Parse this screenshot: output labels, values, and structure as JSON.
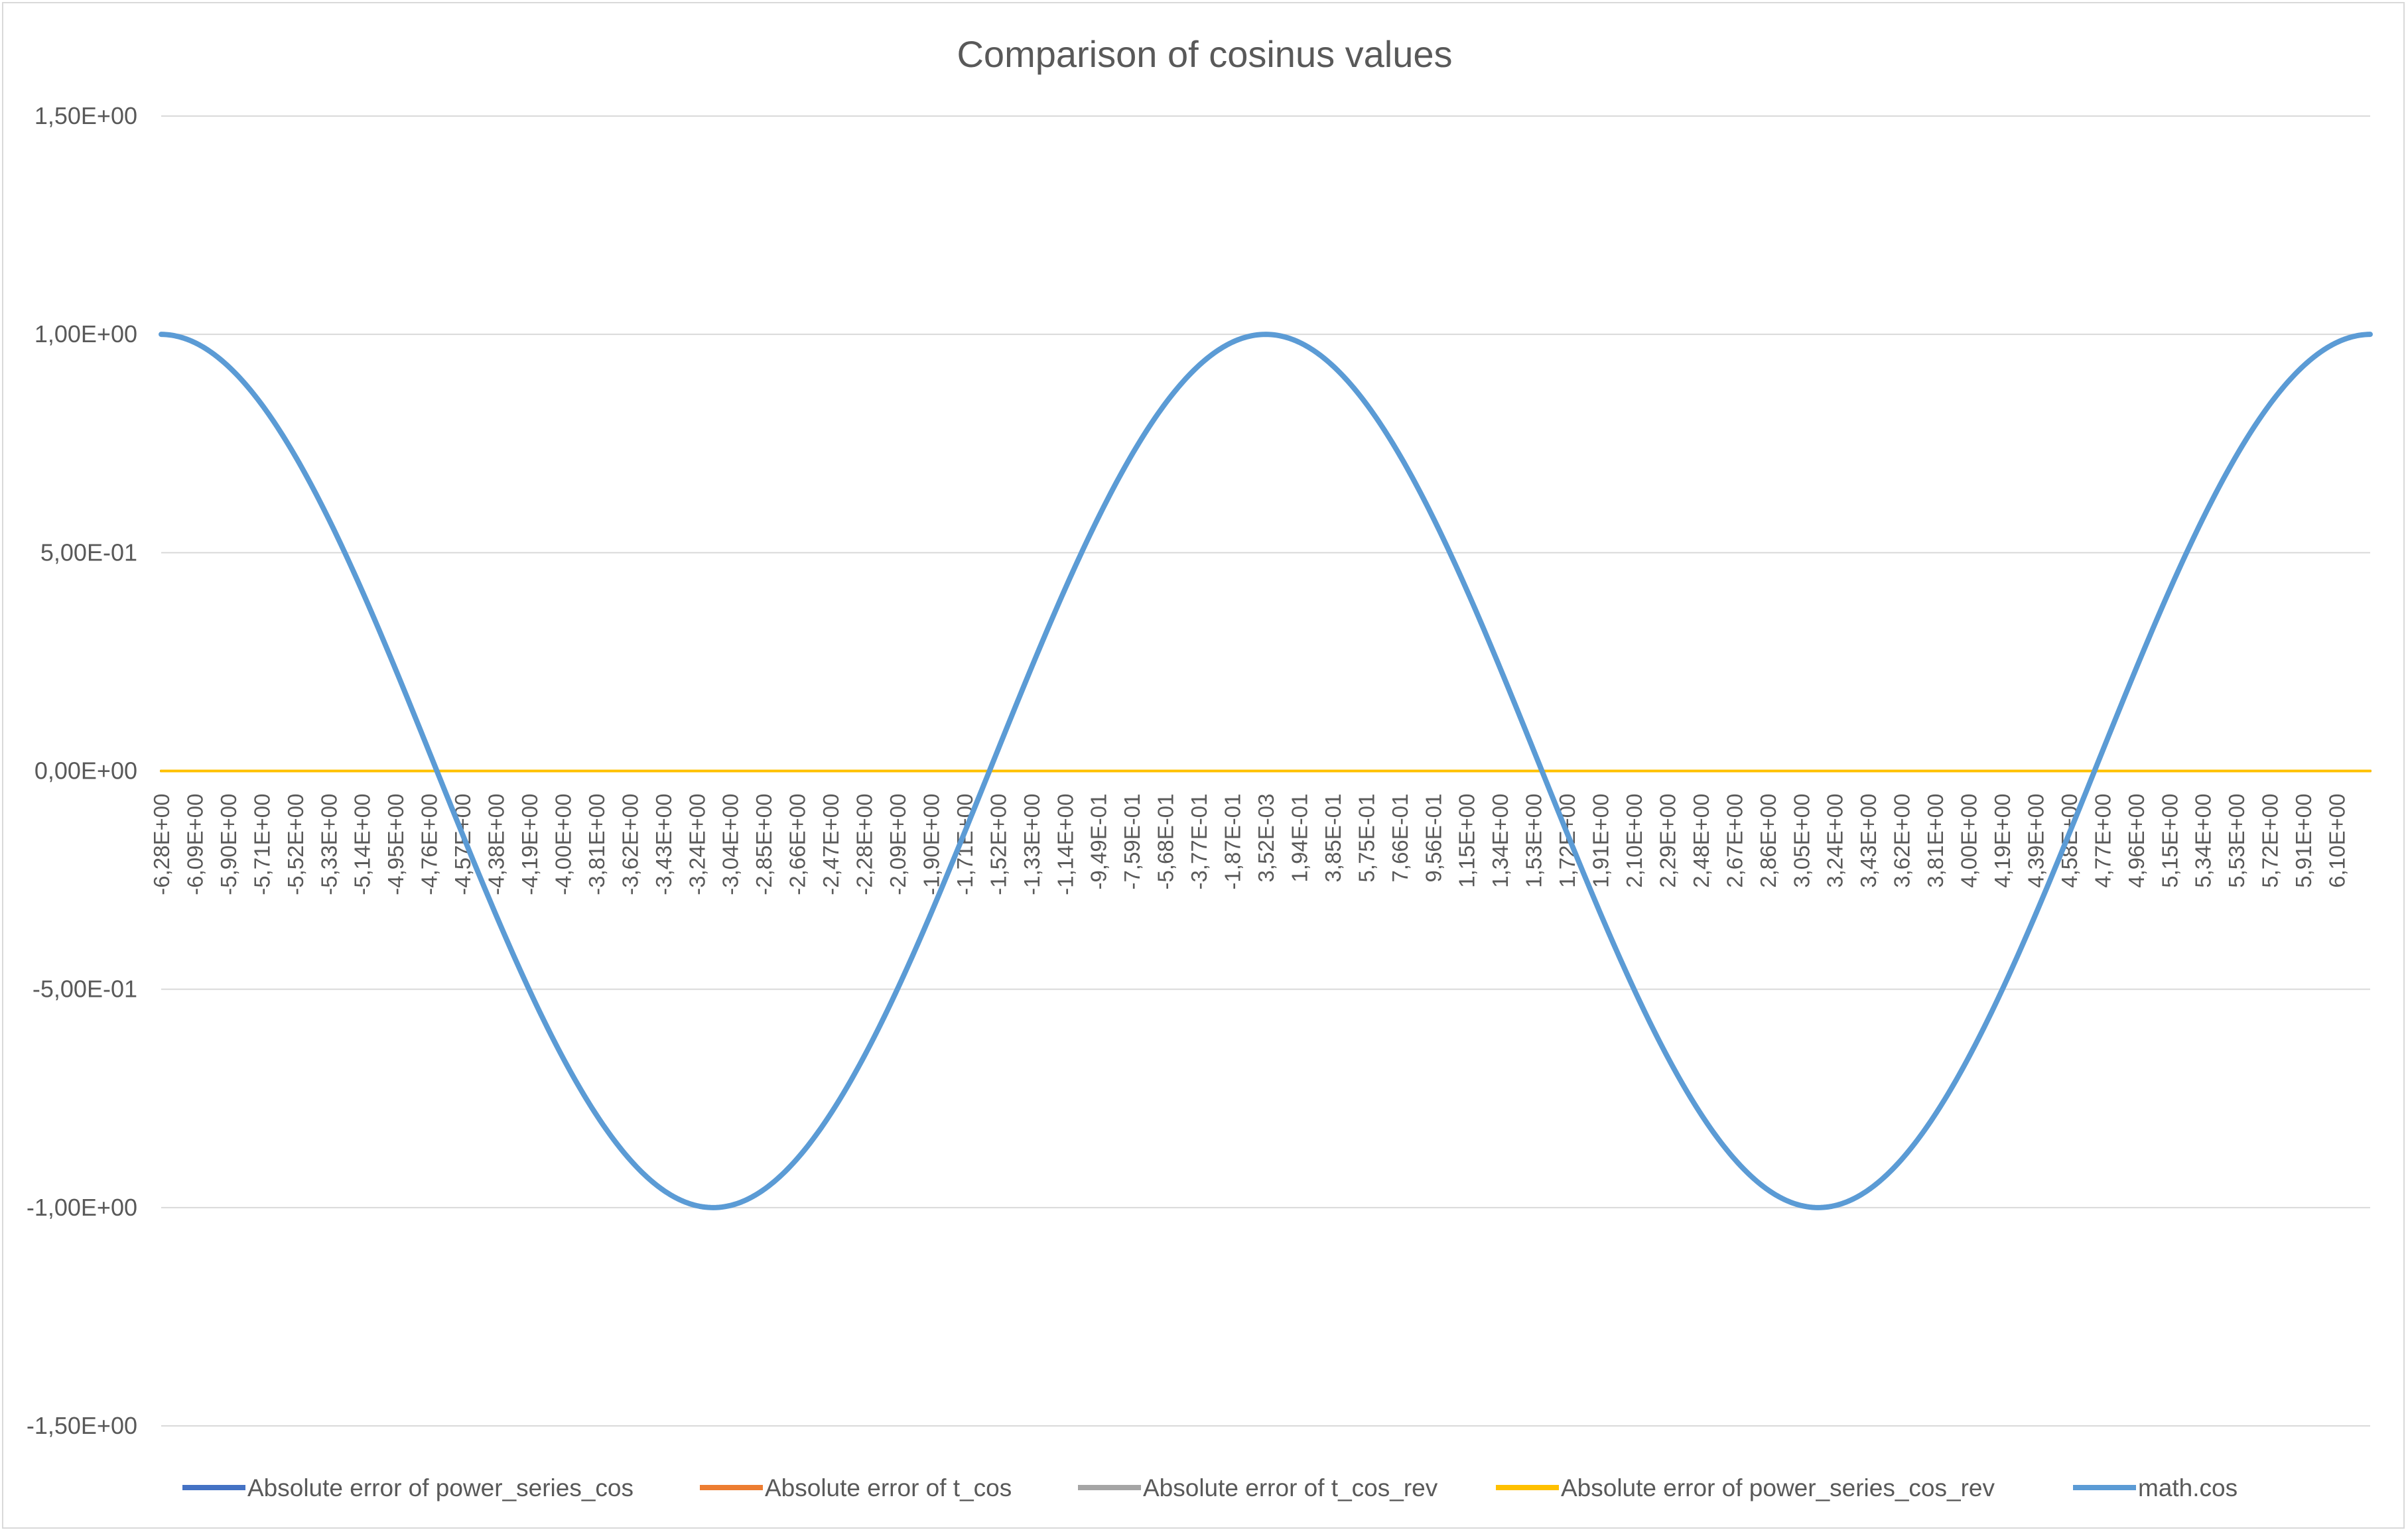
{
  "chart_data": {
    "type": "line",
    "title": "Comparison of cosinus values",
    "xlabel": "",
    "ylabel": "",
    "ylim": [
      -1.5,
      1.5
    ],
    "y_ticks": [
      "-1,50E+00",
      "-1,00E+00",
      "-5,00E-01",
      "0,00E+00",
      "5,00E-01",
      "1,00E+00",
      "1,50E+00"
    ],
    "y_tick_values": [
      -1.5,
      -1.0,
      -0.5,
      0.0,
      0.5,
      1.0,
      1.5
    ],
    "x_range": [
      -6.28,
      6.28
    ],
    "x_tick_labels": [
      "-6,28E+00",
      "-6,09E+00",
      "-5,90E+00",
      "-5,71E+00",
      "-5,52E+00",
      "-5,33E+00",
      "-5,14E+00",
      "-4,95E+00",
      "-4,76E+00",
      "-4,57E+00",
      "-4,38E+00",
      "-4,19E+00",
      "-4,00E+00",
      "-3,81E+00",
      "-3,62E+00",
      "-3,43E+00",
      "-3,24E+00",
      "-3,04E+00",
      "-2,85E+00",
      "-2,66E+00",
      "-2,47E+00",
      "-2,28E+00",
      "-2,09E+00",
      "-1,90E+00",
      "-1,71E+00",
      "-1,52E+00",
      "-1,33E+00",
      "-1,14E+00",
      "-9,49E-01",
      "-7,59E-01",
      "-5,68E-01",
      "-3,77E-01",
      "-1,87E-01",
      "3,52E-03",
      "1,94E-01",
      "3,85E-01",
      "5,75E-01",
      "7,66E-01",
      "9,56E-01",
      "1,15E+00",
      "1,34E+00",
      "1,53E+00",
      "1,72E+00",
      "1,91E+00",
      "2,10E+00",
      "2,29E+00",
      "2,48E+00",
      "2,67E+00",
      "2,86E+00",
      "3,05E+00",
      "3,24E+00",
      "3,43E+00",
      "3,62E+00",
      "3,81E+00",
      "4,00E+00",
      "4,19E+00",
      "4,39E+00",
      "4,58E+00",
      "4,77E+00",
      "4,96E+00",
      "5,15E+00",
      "5,34E+00",
      "5,53E+00",
      "5,72E+00",
      "5,91E+00",
      "6,10E+00"
    ],
    "x_tick_values": [
      -6.28,
      -6.09,
      -5.9,
      -5.71,
      -5.52,
      -5.33,
      -5.14,
      -4.95,
      -4.76,
      -4.57,
      -4.38,
      -4.19,
      -4.0,
      -3.81,
      -3.62,
      -3.43,
      -3.24,
      -3.04,
      -2.85,
      -2.66,
      -2.47,
      -2.28,
      -2.09,
      -1.9,
      -1.71,
      -1.52,
      -1.33,
      -1.14,
      -0.949,
      -0.759,
      -0.568,
      -0.377,
      -0.187,
      0.00352,
      0.194,
      0.385,
      0.575,
      0.766,
      0.956,
      1.15,
      1.34,
      1.53,
      1.72,
      1.91,
      2.1,
      2.29,
      2.48,
      2.67,
      2.86,
      3.05,
      3.24,
      3.43,
      3.62,
      3.81,
      4.0,
      4.19,
      4.39,
      4.58,
      4.77,
      4.96,
      5.15,
      5.34,
      5.53,
      5.72,
      5.91,
      6.1
    ],
    "grid": true,
    "legend_position": "bottom",
    "series": [
      {
        "name": "Absolute error of power_series_cos",
        "color": "#4472c4",
        "x": [
          -6.28,
          6.28
        ],
        "values": [
          0,
          0
        ]
      },
      {
        "name": "Absolute error of t_cos",
        "color": "#ed7d31",
        "x": [
          -6.28,
          6.28
        ],
        "values": [
          0,
          0
        ]
      },
      {
        "name": "Absolute error of t_cos_rev",
        "color": "#a5a5a5",
        "x": [
          -6.28,
          6.28
        ],
        "values": [
          0,
          0
        ]
      },
      {
        "name": "Absolute error of power_series_cos_rev",
        "color": "#ffc000",
        "x": [
          -6.28,
          6.28
        ],
        "values": [
          0,
          0
        ]
      },
      {
        "name": "math.cos",
        "color": "#5b9bd5",
        "x": [
          -6.28,
          -5.97,
          -5.65,
          -5.34,
          -5.02,
          -4.71,
          -4.4,
          -4.08,
          -3.77,
          -3.45,
          -3.14,
          -2.83,
          -2.51,
          -2.2,
          -1.88,
          -1.57,
          -1.26,
          -0.94,
          -0.63,
          -0.31,
          0.0,
          0.31,
          0.63,
          0.94,
          1.26,
          1.57,
          1.88,
          2.2,
          2.51,
          2.83,
          3.14,
          3.45,
          3.77,
          4.08,
          4.4,
          4.71,
          5.02,
          5.34,
          5.65,
          5.97,
          6.28
        ],
        "values": [
          1.0,
          0.951,
          0.809,
          0.588,
          0.309,
          0.0,
          -0.309,
          -0.588,
          -0.809,
          -0.951,
          -1.0,
          -0.951,
          -0.809,
          -0.588,
          -0.309,
          0.0,
          0.309,
          0.588,
          0.809,
          0.951,
          1.0,
          0.951,
          0.809,
          0.588,
          0.309,
          0.0,
          -0.309,
          -0.588,
          -0.809,
          -0.951,
          -1.0,
          -0.951,
          -0.809,
          -0.588,
          -0.309,
          0.0,
          0.309,
          0.588,
          0.809,
          0.951,
          1.0
        ]
      }
    ]
  }
}
